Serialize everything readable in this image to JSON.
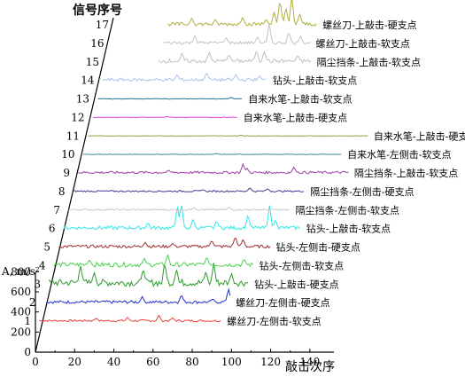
{
  "chart_data": {
    "type": "line",
    "ylabel_title": "信号序号",
    "amplitude_axis_label": "A, m/s²",
    "xlabel": "敲击次序",
    "x_ticks": [
      0,
      20,
      40,
      60,
      80,
      100,
      120,
      140
    ],
    "x_range": [
      0,
      150
    ],
    "amplitude_ticks": [
      0,
      200,
      400,
      600,
      800
    ],
    "amplitude_range": [
      0,
      900
    ],
    "series": [
      {
        "index": "1",
        "name": "螺丝刀-左侧击-软支点",
        "color": "#e8413c",
        "x_start": 2,
        "x_end": 95,
        "peaks": [
          [
            31,
            30
          ],
          [
            47,
            40
          ],
          [
            63,
            60
          ],
          [
            70,
            35
          ]
        ],
        "noise": 20
      },
      {
        "index": "2",
        "name": "螺丝刀-左侧击-硬支点",
        "color": "#1f2fd6",
        "x_start": 3,
        "x_end": 97,
        "peaks": [
          [
            52,
            60
          ],
          [
            72,
            80
          ],
          [
            88,
            40
          ],
          [
            96,
            140
          ]
        ],
        "noise": 30
      },
      {
        "index": "3",
        "name": "钻头-上敲击-硬支点",
        "color": "#2e9a2e",
        "x_start": 2,
        "x_end": 104,
        "peaks": [
          [
            18,
            190
          ],
          [
            25,
            120
          ],
          [
            50,
            160
          ],
          [
            61,
            220
          ],
          [
            67,
            150
          ],
          [
            82,
            130
          ],
          [
            86,
            210
          ],
          [
            95,
            110
          ]
        ],
        "noise": 70
      },
      {
        "index": "4",
        "name": "钻头-左侧击-软支点",
        "color": "#4bd14b",
        "x_start": 2,
        "x_end": 104,
        "peaks": [
          [
            20,
            60
          ],
          [
            48,
            80
          ],
          [
            60,
            110
          ],
          [
            80,
            90
          ],
          [
            99,
            70
          ]
        ],
        "noise": 45
      },
      {
        "index": "5",
        "name": "钻头-左侧击-硬支点",
        "color": "#a03030",
        "x_start": 2,
        "x_end": 110,
        "peaks": [
          [
            46,
            50
          ],
          [
            60,
            40
          ],
          [
            80,
            70
          ],
          [
            92,
            110
          ],
          [
            96,
            80
          ]
        ],
        "noise": 30
      },
      {
        "index": "6",
        "name": "钻头-上敲击-软支点",
        "color": "#2ee8e8",
        "x_start": 2,
        "x_end": 123,
        "peaks": [
          [
            45,
            60
          ],
          [
            60,
            230
          ],
          [
            62,
            260
          ],
          [
            68,
            100
          ],
          [
            80,
            80
          ],
          [
            96,
            140
          ],
          [
            107,
            230
          ],
          [
            110,
            90
          ]
        ],
        "noise": 35
      },
      {
        "index": "7",
        "name": "隔尘挡条-左侧击-软支点",
        "color": "#c8c8c8",
        "x_start": 2,
        "x_end": 115,
        "peaks": [
          [
            66,
            25
          ],
          [
            84,
            30
          ]
        ],
        "noise": 15
      },
      {
        "index": "8",
        "name": "隔尘挡条-左侧击-硬支点",
        "color": "#404090",
        "x_start": 2,
        "x_end": 120,
        "peaks": [
          [
            68,
            20
          ],
          [
            92,
            40
          ],
          [
            101,
            30
          ]
        ],
        "noise": 15
      },
      {
        "index": "9",
        "name": "隔尘挡条-上敲击-软支点",
        "color": "#9b3fa3",
        "x_start": 2,
        "x_end": 140,
        "peaks": [
          [
            48,
            30
          ],
          [
            86,
            90
          ],
          [
            88,
            50
          ],
          [
            112,
            60
          ]
        ],
        "noise": 25
      },
      {
        "index": "10",
        "name": "自来水笔-左侧击-软支点",
        "color": "#3f8f99",
        "x_start": 2,
        "x_end": 134,
        "peaks": [
          [
            70,
            10
          ]
        ],
        "noise": 5
      },
      {
        "index": "11",
        "name": "自来水笔-上敲击-硬支点",
        "color": "#9a9a40",
        "x_start": 2,
        "x_end": 145,
        "peaks": [
          [
            80,
            8
          ]
        ],
        "noise": 4
      },
      {
        "index": "12",
        "name": "自来水笔-上敲击-硬支点",
        "color": "#e040e0",
        "x_start": 2,
        "x_end": 76,
        "peaks": [
          [
            40,
            10
          ]
        ],
        "noise": 5
      },
      {
        "index": "13",
        "name": "自来水笔-上敲击-软支点",
        "color": "#1f6f8f",
        "x_start": 2,
        "x_end": 76,
        "peaks": [
          [
            70,
            15
          ]
        ],
        "noise": 5
      },
      {
        "index": "14",
        "name": "钻头-上敲击-软支点",
        "color": "#a8c4ec",
        "x_start": 2,
        "x_end": 86,
        "peaks": [
          [
            40,
            60
          ],
          [
            55,
            80
          ],
          [
            70,
            60
          ],
          [
            82,
            50
          ]
        ],
        "noise": 30
      },
      {
        "index": "15",
        "name": "隔尘挡条-上敲击-软支点",
        "color": "#bfbfbf",
        "x_start": 28,
        "x_end": 106,
        "peaks": [
          [
            40,
            90
          ],
          [
            54,
            100
          ],
          [
            64,
            80
          ],
          [
            78,
            120
          ],
          [
            82,
            110
          ],
          [
            99,
            70
          ]
        ],
        "noise": 40
      },
      {
        "index": "16",
        "name": "螺丝刀-上敲击-软支点",
        "color": "#c3c3c3",
        "x_start": 28,
        "x_end": 103,
        "peaks": [
          [
            44,
            80
          ],
          [
            60,
            60
          ],
          [
            76,
            70
          ],
          [
            82,
            200
          ],
          [
            92,
            120
          ],
          [
            98,
            70
          ]
        ],
        "noise": 30
      },
      {
        "index": "17",
        "name": "螺丝刀-上敲击-硬支点",
        "color": "#b0b040",
        "x_start": 28,
        "x_end": 104,
        "peaks": [
          [
            40,
            70
          ],
          [
            52,
            60
          ],
          [
            66,
            80
          ],
          [
            78,
            60
          ],
          [
            82,
            130
          ],
          [
            85,
            260
          ],
          [
            88,
            180
          ],
          [
            91,
            280
          ],
          [
            95,
            120
          ]
        ],
        "noise": 35
      }
    ]
  }
}
